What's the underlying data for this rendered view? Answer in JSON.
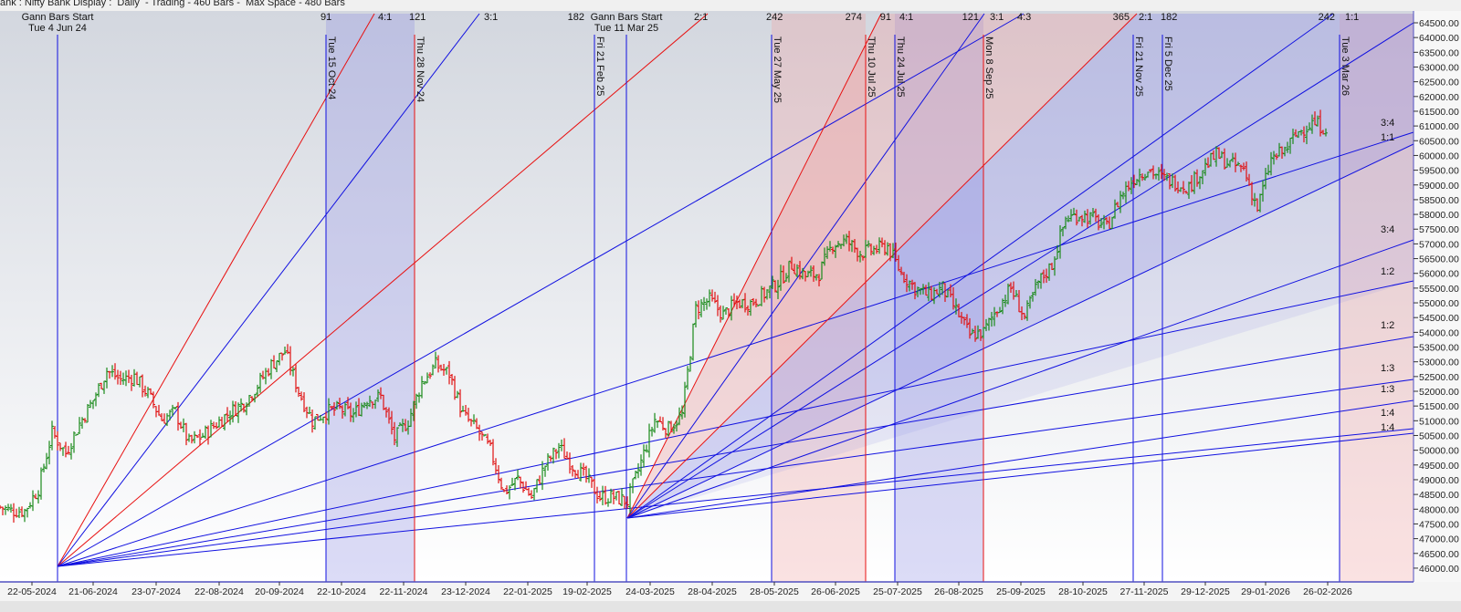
{
  "header": {
    "title": "ank : Nifty Bank Display :  Daily  - Trading - 460 Bars -  Max Space - 480 Bars"
  },
  "colors": {
    "up_bar": "#1a8a1a",
    "down_bar": "#e01010",
    "blue_line": "#1010e0",
    "red_line": "#e81010",
    "blue_band": "#8c8ce6",
    "pink_band": "#f2a0a0"
  },
  "chart_data": {
    "type": "bar",
    "subtype": "ohlc-with-gann-fans",
    "ylim": [
      45700,
      64800
    ],
    "y_ticks": [
      46000,
      46500,
      47000,
      47500,
      48000,
      48500,
      49000,
      49500,
      50000,
      50500,
      51000,
      51500,
      52000,
      52500,
      53000,
      53500,
      54000,
      54500,
      55000,
      55500,
      56000,
      56500,
      57000,
      57500,
      58000,
      58500,
      59000,
      59500,
      60000,
      60500,
      61000,
      61500,
      62000,
      62500,
      63000,
      63500,
      64000,
      64500
    ],
    "x_ticks": [
      "22-05-2024",
      "21-06-2024",
      "23-07-2024",
      "22-08-2024",
      "20-09-2024",
      "22-10-2024",
      "22-11-2024",
      "23-12-2024",
      "22-01-2025",
      "19-02-2025",
      "24-03-2025",
      "28-04-2025",
      "28-05-2025",
      "26-06-2025",
      "25-07-2025",
      "26-08-2025",
      "25-09-2025",
      "28-10-2025",
      "27-11-2025",
      "29-12-2025",
      "29-01-2026",
      "26-02-2026"
    ],
    "closes": [
      48100,
      47950,
      47950,
      48700,
      50600,
      49900,
      50900,
      51700,
      52700,
      52400,
      52500,
      51900,
      51050,
      51300,
      50250,
      50500,
      50900,
      51300,
      51600,
      52200,
      52900,
      53360,
      52000,
      51000,
      51300,
      51400,
      51200,
      51750,
      51800,
      50400,
      51000,
      52300,
      52900,
      52590,
      51200,
      50700,
      50000,
      48570,
      49030,
      48410,
      49490,
      50110,
      49490,
      49030,
      48410,
      48410,
      48260,
      49600,
      51040,
      50730,
      51200,
      54800,
      55100,
      54600,
      55000,
      55000,
      55300,
      55700,
      56300,
      55900,
      56000,
      57000,
      57100,
      56700,
      56800,
      56920,
      56000,
      55500,
      55250,
      55500,
      54750,
      53900,
      54000,
      54800,
      55500,
      54500,
      55680,
      56300,
      57850,
      58000,
      57850,
      57540,
      58620,
      59240,
      59550,
      59240,
      59090,
      58930,
      59550,
      60010,
      59700,
      59550,
      58200,
      59860,
      60170,
      60800,
      61100,
      60950
    ],
    "vertical_markers": [
      {
        "top": "",
        "line1": "Gann Bars Start",
        "line2": "Tue 4 Jun 24",
        "color": "blue",
        "horizontal": true
      },
      {
        "top": "91",
        "date": "Tue 15 Oct 24",
        "color": "blue"
      },
      {
        "top": "121",
        "date": "Thu 28 Nov 24",
        "color": "red"
      },
      {
        "top": "182",
        "date": "Fri 21 Feb 25",
        "color": "blue"
      },
      {
        "top": "",
        "line1": "Gann Bars Start",
        "line2": "Tue 11 Mar 25",
        "color": "blue",
        "horizontal": true
      },
      {
        "top": "242",
        "date": "Tue 27 May 25",
        "color": "blue"
      },
      {
        "top": "274",
        "date": "Thu 10 Jul 25",
        "color": "red"
      },
      {
        "top": "91",
        "date": "Thu 24 Jul 25",
        "color": "blue"
      },
      {
        "top": "121",
        "date": "Mon 8 Sep 25",
        "color": "red"
      },
      {
        "top": "365",
        "date": "Fri 21 Nov 25",
        "color": "blue"
      },
      {
        "top": "182",
        "date": "Fri 5 Dec 25",
        "color": "blue"
      },
      {
        "top": "242",
        "date": "Tue 3 Mar 26",
        "color": "blue"
      }
    ],
    "fan_top_labels": [
      "4:1",
      "3:1",
      "2:1",
      "4:1",
      "3:1",
      "4:3",
      "2:1",
      "1:1"
    ],
    "fan_right_labels": [
      "3:4",
      "1:1",
      "3:4",
      "1:2",
      "1:2",
      "1:3",
      "1:3",
      "1:4",
      "1:4"
    ]
  }
}
